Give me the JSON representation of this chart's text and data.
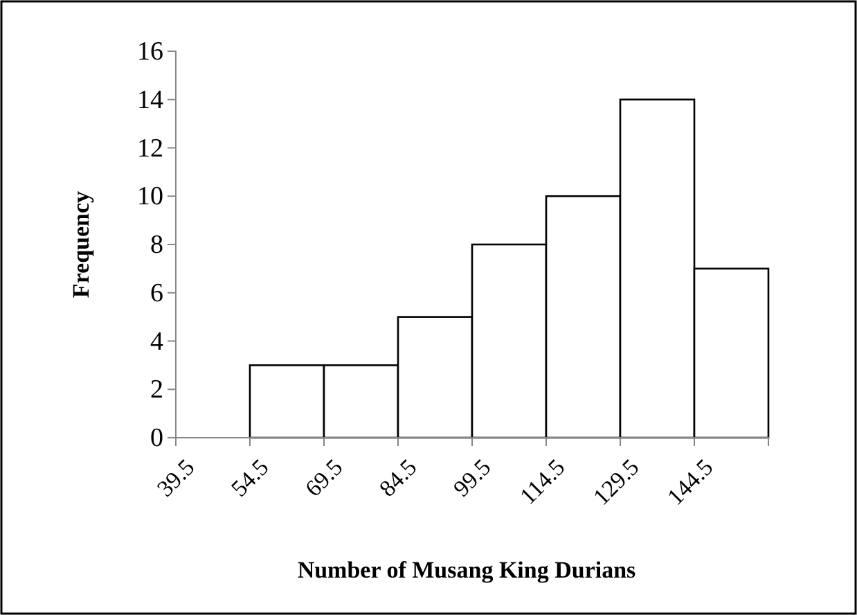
{
  "chart_data": {
    "type": "histogram",
    "xlabel": "Number of Musang King Durians",
    "ylabel": "Frequency",
    "bins": [
      39.5,
      54.5,
      69.5,
      84.5,
      99.5,
      114.5,
      129.5,
      144.5,
      159.5
    ],
    "values": [
      0,
      3,
      3,
      5,
      8,
      10,
      14,
      7
    ],
    "color": "#ffffff",
    "xlim": [
      39.5,
      159.5
    ],
    "xticks": [
      39.5,
      54.5,
      69.5,
      84.5,
      99.5,
      114.5,
      129.5,
      144.5,
      {
        "value": 159.5,
        "label": null
      }
    ],
    "ylim": [
      0,
      16
    ],
    "yticks": [
      0,
      2,
      4,
      6,
      8,
      10,
      12,
      14,
      16
    ],
    "grid": false
  }
}
